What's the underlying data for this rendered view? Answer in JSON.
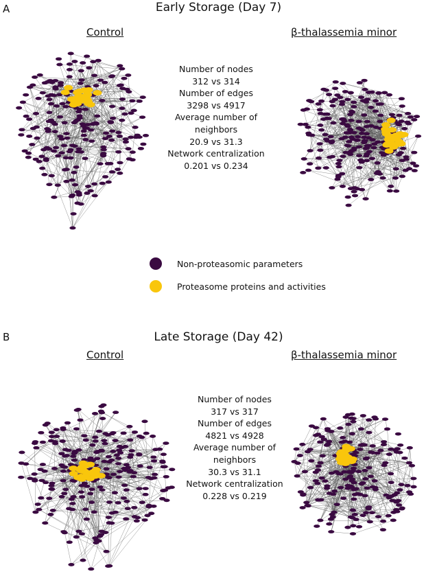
{
  "colors": {
    "non_proteasomic": "#3a0a41",
    "proteasome": "#f9c60c",
    "edge": "#5a5a5a",
    "text": "#111111"
  },
  "legend": {
    "non_proteasomic": "Non-proteasomic parameters",
    "proteasome": "Proteasome proteins and activities"
  },
  "panels": [
    {
      "letter": "A",
      "title": "Early Storage (Day 7)",
      "control_label": "Control",
      "case_label": "β-thalassemia minor",
      "stats": [
        "Number of nodes",
        "312 vs 314",
        "Number of edges",
        "3298 vs 4917",
        "Average number of",
        "neighbors",
        "20.9 vs 31.3",
        "Network centralization",
        "0.201 vs 0.234"
      ]
    },
    {
      "letter": "B",
      "title": "Late Storage (Day 42)",
      "control_label": "Control",
      "case_label": "β-thalassemia minor",
      "stats": [
        "Number of nodes",
        "317 vs 317",
        "Number of edges",
        "4821 vs 4928",
        "Average number of",
        "neighbors",
        "30.3 vs 31.1",
        "Network centralization",
        "0.228 vs 0.219"
      ]
    }
  ]
}
